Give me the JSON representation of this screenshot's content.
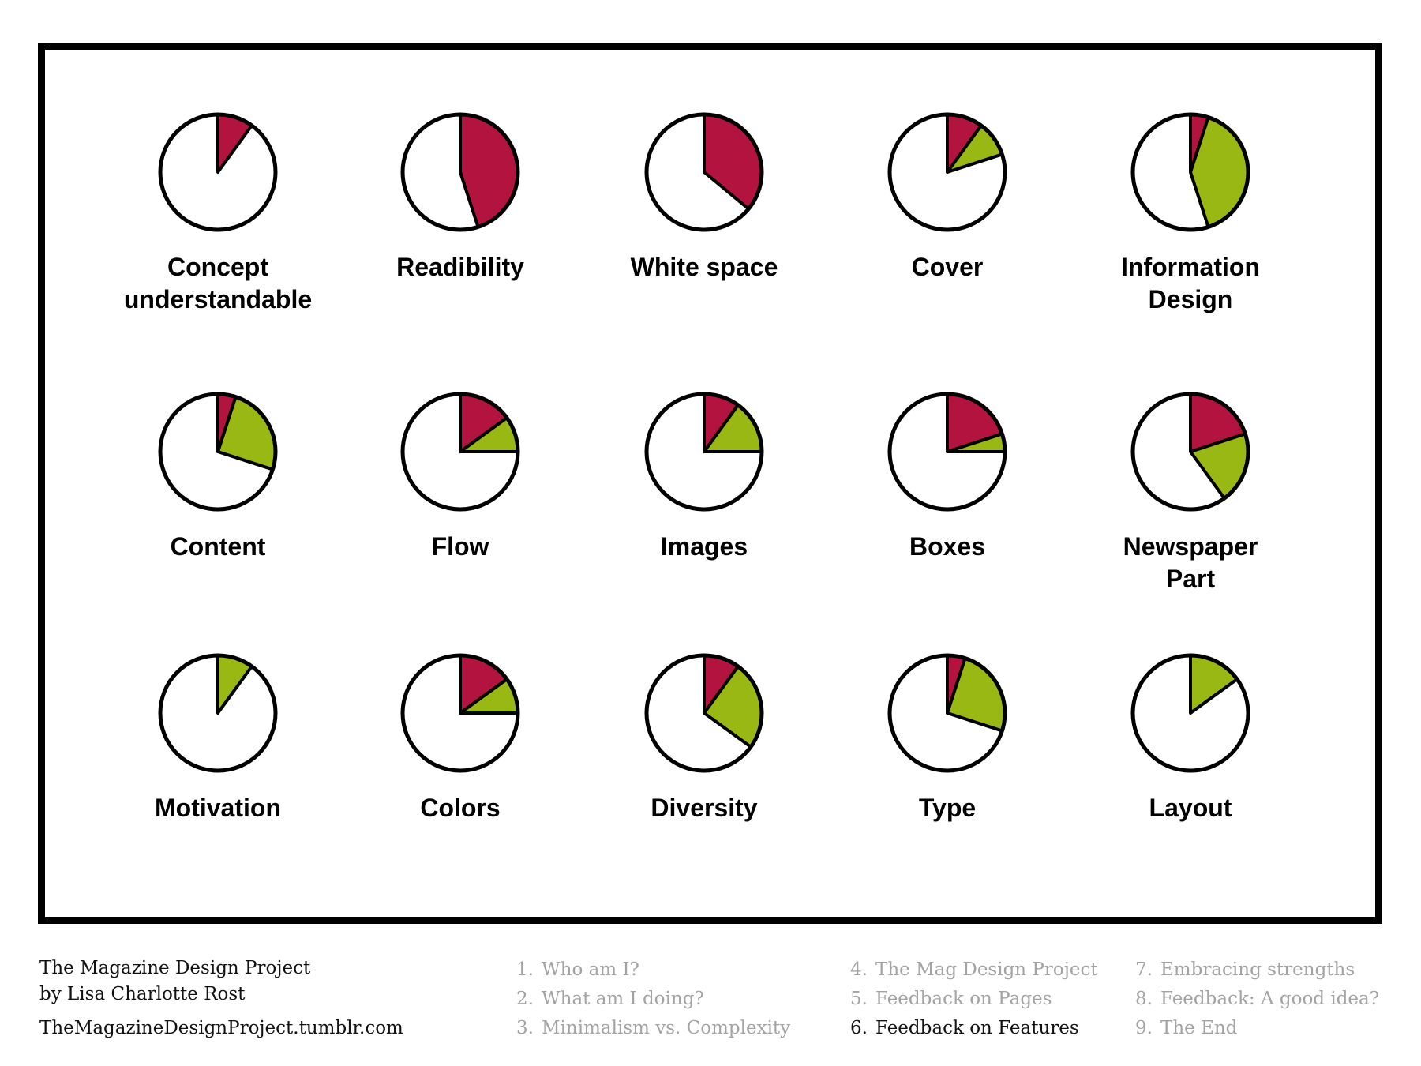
{
  "colors": {
    "red": "#b3143f",
    "green": "#9ab813",
    "outline": "#000000",
    "background": "#ffffff"
  },
  "chart_data": {
    "type": "pie",
    "title": "",
    "series_colors": [
      "red",
      "green"
    ],
    "charts": [
      {
        "label": "Concept\nunderstandable",
        "red": 0.1,
        "green": 0.0
      },
      {
        "label": "Readibility",
        "red": 0.45,
        "green": 0.0
      },
      {
        "label": "White space",
        "red": 0.36,
        "green": 0.0
      },
      {
        "label": "Cover",
        "red": 0.1,
        "green": 0.1
      },
      {
        "label": "Information\nDesign",
        "red": 0.05,
        "green": 0.4
      },
      {
        "label": "Content",
        "red": 0.05,
        "green": 0.25
      },
      {
        "label": "Flow",
        "red": 0.15,
        "green": 0.1
      },
      {
        "label": "Images",
        "red": 0.1,
        "green": 0.15
      },
      {
        "label": "Boxes",
        "red": 0.2,
        "green": 0.05
      },
      {
        "label": "Newspaper\nPart",
        "red": 0.2,
        "green": 0.2
      },
      {
        "label": "Motivation",
        "red": 0.0,
        "green": 0.1
      },
      {
        "label": "Colors",
        "red": 0.15,
        "green": 0.1
      },
      {
        "label": "Diversity",
        "red": 0.1,
        "green": 0.25
      },
      {
        "label": "Type",
        "red": 0.05,
        "green": 0.25
      },
      {
        "label": "Layout",
        "red": 0.0,
        "green": 0.15
      }
    ]
  },
  "footer": {
    "title": "The Magazine Design Project",
    "author": "by Lisa Charlotte Rost",
    "url": "TheMagazineDesignProject.tumblr.com"
  },
  "toc": [
    [
      {
        "num": "1.",
        "text": "Who am I?",
        "active": false
      },
      {
        "num": "2.",
        "text": "What am I doing?",
        "active": false
      },
      {
        "num": "3.",
        "text": "Minimalism vs. Complexity",
        "active": false
      }
    ],
    [
      {
        "num": "4.",
        "text": "The Mag Design Project",
        "active": false
      },
      {
        "num": "5.",
        "text": "Feedback on Pages",
        "active": false
      },
      {
        "num": "6.",
        "text": "Feedback on Features",
        "active": true
      }
    ],
    [
      {
        "num": "7.",
        "text": "Embracing strengths",
        "active": false
      },
      {
        "num": "8.",
        "text": "Feedback: A good idea?",
        "active": false
      },
      {
        "num": "9.",
        "text": "The End",
        "active": false
      }
    ]
  ]
}
